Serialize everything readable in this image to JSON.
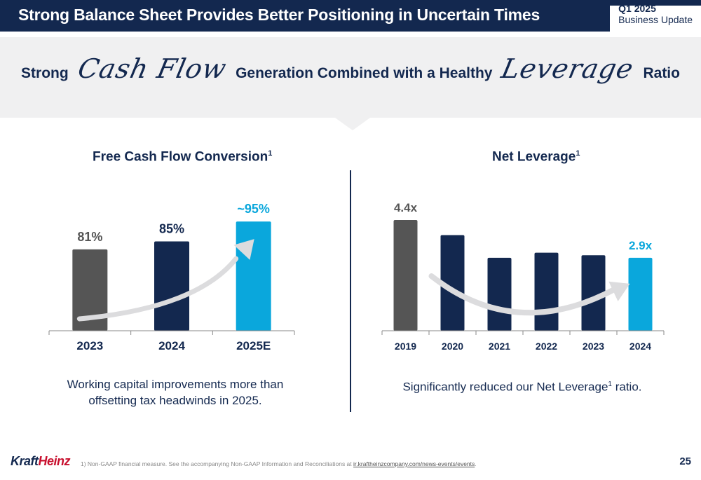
{
  "header": {
    "title": "Strong Balance Sheet Provides Better Positioning in Uncertain Times",
    "quarter": "Q1 2025",
    "update_label": "Business Update"
  },
  "headline": {
    "part1": "Strong",
    "script1": "Cash Flow",
    "part2": "Generation Combined with a Healthy",
    "script2": "Leverage",
    "part3": "Ratio"
  },
  "fcf": {
    "title": "Free Cash Flow Conversion",
    "title_sup": "1",
    "caption_line1": "Working capital improvements more than",
    "caption_line2": "offsetting tax headwinds in 2025."
  },
  "leverage": {
    "title": "Net Leverage",
    "title_sup": "1",
    "caption_pre": "Significantly reduced our Net Leverage",
    "caption_sup": "1",
    "caption_post": " ratio."
  },
  "chart_data": [
    {
      "type": "bar",
      "title": "Free Cash Flow Conversion",
      "categories": [
        "2023",
        "2024",
        "2025E"
      ],
      "values": [
        81,
        85,
        95
      ],
      "data_labels": [
        "81%",
        "85%",
        "~95%"
      ],
      "colors": [
        "#555555",
        "#13284f",
        "#0aa7dc"
      ],
      "label_colors": [
        "#555555",
        "#13284f",
        "#0aa7dc"
      ],
      "ylim": [
        40,
        100
      ],
      "trend_arrow": "up"
    },
    {
      "type": "bar",
      "title": "Net Leverage",
      "categories": [
        "2019",
        "2020",
        "2021",
        "2022",
        "2023",
        "2024"
      ],
      "values": [
        4.4,
        3.8,
        2.9,
        3.1,
        3.0,
        2.9
      ],
      "data_labels": [
        "4.4x",
        "",
        "",
        "",
        "",
        "2.9x"
      ],
      "colors": [
        "#555555",
        "#13284f",
        "#13284f",
        "#13284f",
        "#13284f",
        "#0aa7dc"
      ],
      "label_colors": [
        "#555555",
        "#13284f",
        "#13284f",
        "#13284f",
        "#13284f",
        "#0aa7dc"
      ],
      "ylim": [
        0,
        4.4
      ],
      "trend_arrow": "down"
    }
  ],
  "footer": {
    "logo_kraft": "Kraft",
    "logo_heinz": "Heinz",
    "footnote_text": "1) Non-GAAP financial measure. See the accompanying Non-GAAP Information and Reconciliations at",
    "footnote_link": "ir.kraftheinzcompany.com/news-events/events",
    "footnote_end": ".",
    "page_number": "25"
  }
}
